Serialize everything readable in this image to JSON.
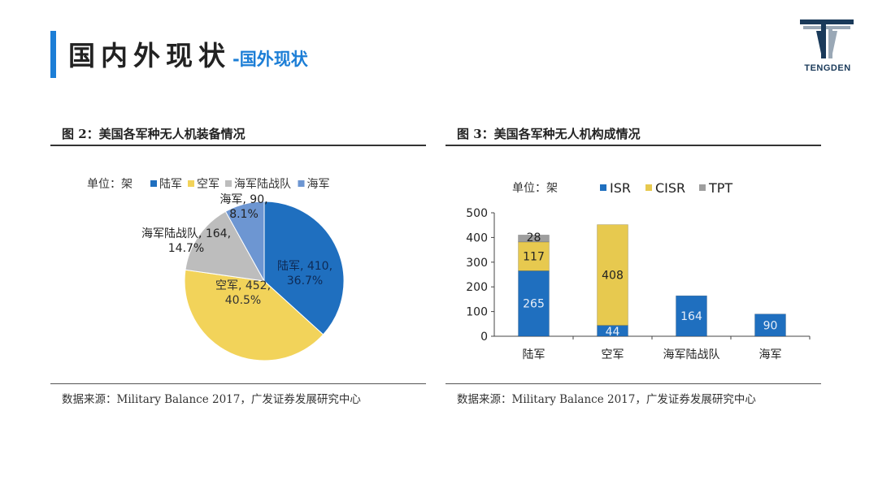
{
  "header": {
    "title": "国内外现状",
    "subtitle": "-国外现状",
    "brand": "TENGDEN"
  },
  "colors": {
    "accent": "#1c7ed6",
    "army": "#1f6fbf",
    "airforce": "#f2d35a",
    "marines": "#bdbdbd",
    "navy": "#6d96d2",
    "isr": "#1f6fbf",
    "cisr": "#e7c94f",
    "tpt": "#9e9e9e"
  },
  "left_panel": {
    "title": "图 2：美国各军种无人机装备情况",
    "source": "数据来源：Military Balance 2017，广发证券发展研究中心"
  },
  "right_panel": {
    "title": "图 3：美国各军种无人机构成情况",
    "source": "数据来源：Military Balance 2017，广发证券发展研究中心"
  },
  "chart_data": [
    {
      "type": "pie",
      "unit_label": "单位：架",
      "legend_position": "top",
      "slices": [
        {
          "label": "陆军",
          "value": 410,
          "percent": "36.7%",
          "color": "#1f6fbf"
        },
        {
          "label": "空军",
          "value": 452,
          "percent": "40.5%",
          "color": "#f2d35a"
        },
        {
          "label": "海军陆战队",
          "value": 164,
          "percent": "14.7%",
          "color": "#bdbdbd"
        },
        {
          "label": "海军",
          "value": 90,
          "percent": "8.1%",
          "color": "#6d96d2"
        }
      ]
    },
    {
      "type": "bar",
      "stacked": true,
      "unit_label": "单位：架",
      "legend_position": "top",
      "categories": [
        "陆军",
        "空军",
        "海军陆战队",
        "海军"
      ],
      "series": [
        {
          "name": "ISR",
          "values": [
            265,
            44,
            164,
            90
          ],
          "color": "#1f6fbf"
        },
        {
          "name": "CISR",
          "values": [
            117,
            408,
            0,
            0
          ],
          "color": "#e7c94f"
        },
        {
          "name": "TPT",
          "values": [
            28,
            0,
            0,
            0
          ],
          "color": "#9e9e9e"
        }
      ],
      "data_labels": [
        [
          "265",
          "44",
          "164",
          "90"
        ],
        [
          "117",
          "408",
          "",
          ""
        ],
        [
          "28",
          "",
          "",
          ""
        ]
      ],
      "ylim": [
        0,
        500
      ],
      "yticks": [
        0,
        100,
        200,
        300,
        400,
        500
      ],
      "grid": false
    }
  ]
}
